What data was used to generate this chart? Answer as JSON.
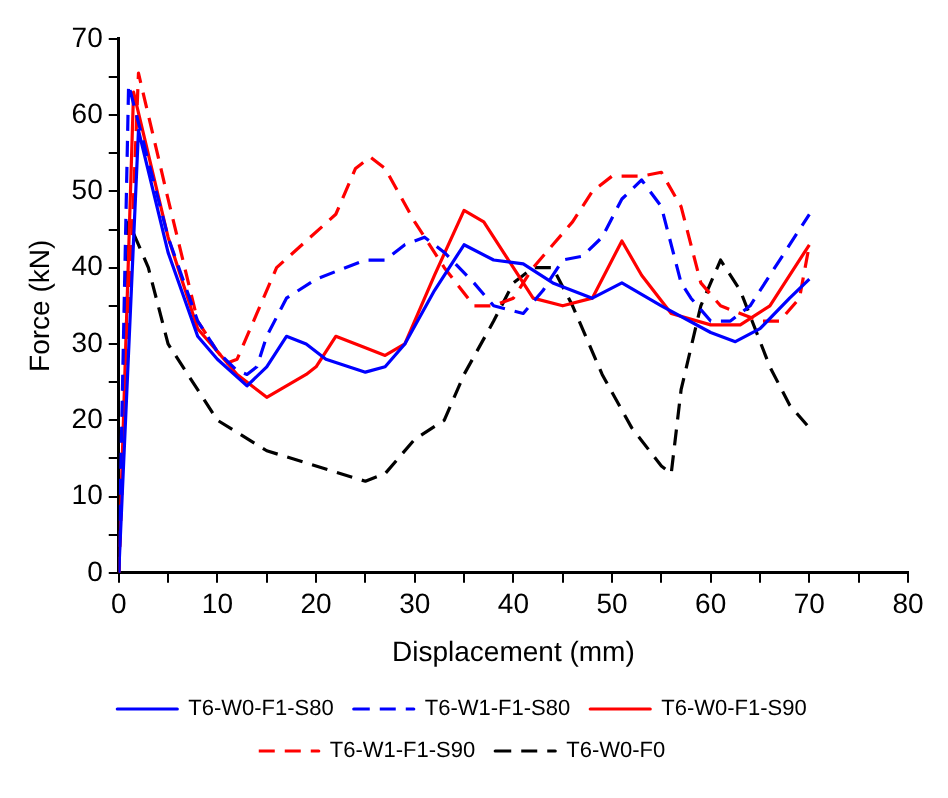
{
  "chart_data": {
    "type": "line",
    "xlabel": "Displacement (mm)",
    "ylabel": "Force (kN)",
    "xlim": [
      0,
      80
    ],
    "ylim": [
      0,
      70
    ],
    "xticks": [
      0,
      {
        "value": 5,
        "label": null
      },
      10,
      {
        "value": 15,
        "label": null
      },
      20,
      {
        "value": 25,
        "label": null
      },
      30,
      {
        "value": 35,
        "label": null
      },
      40,
      {
        "value": 45,
        "label": null
      },
      50,
      {
        "value": 55,
        "label": null
      },
      60,
      {
        "value": 65,
        "label": null
      },
      70,
      {
        "value": 75,
        "label": null
      },
      80
    ],
    "yticks": [
      0,
      {
        "value": 5,
        "label": null
      },
      10,
      {
        "value": 15,
        "label": null
      },
      20,
      {
        "value": 25,
        "label": null
      },
      30,
      {
        "value": 35,
        "label": null
      },
      40,
      {
        "value": 45,
        "label": null
      },
      50,
      {
        "value": 55,
        "label": null
      },
      60,
      {
        "value": 65,
        "label": null
      },
      70
    ],
    "grid": false,
    "legend": "bottom",
    "marker": "none",
    "series": [
      {
        "name": "T6-W0-F1-S80",
        "color": "#0000ff",
        "line_style": "solid",
        "x": [
          0,
          2,
          5,
          8,
          10,
          13,
          15,
          17,
          19,
          21,
          25,
          27,
          29,
          32,
          35,
          38,
          41,
          44,
          48,
          51,
          55,
          60,
          62.5,
          65,
          68,
          70
        ],
        "values": [
          0,
          58,
          42,
          31,
          28,
          24.5,
          27,
          31,
          30,
          28,
          26.3,
          27,
          30,
          37,
          43,
          41,
          40.5,
          38,
          36,
          38,
          35,
          31.5,
          30.3,
          32,
          36,
          38.5
        ]
      },
      {
        "name": "T6-W1-F1-S80",
        "color": "#0000ff",
        "line_style": "dashed",
        "x": [
          0,
          1,
          5,
          8,
          10,
          12,
          13,
          14,
          15,
          17,
          20,
          25,
          27,
          29,
          31,
          33,
          36,
          38,
          41,
          43,
          45,
          47,
          49,
          51,
          53,
          55,
          57,
          58,
          60,
          62,
          64,
          67,
          70
        ],
        "values": [
          0,
          64,
          44,
          33,
          29,
          26.5,
          26,
          27,
          31,
          36,
          38.5,
          41,
          41,
          43,
          44,
          42,
          38,
          35,
          34,
          37,
          41,
          41.5,
          44,
          49,
          51.5,
          48,
          38,
          36,
          33,
          33,
          35,
          41,
          47
        ]
      },
      {
        "name": "T6-W0-F1-S90",
        "color": "#ff0000",
        "line_style": "solid",
        "x": [
          0,
          1.5,
          5,
          8,
          10,
          12,
          15,
          17,
          19,
          20,
          22,
          25,
          27,
          29,
          32,
          35,
          37,
          40,
          42,
          45,
          48,
          51,
          53,
          56,
          60,
          63,
          66,
          70
        ],
        "values": [
          0,
          63,
          44,
          32,
          29,
          26,
          23,
          24.5,
          26,
          27,
          31,
          29.5,
          28.5,
          30,
          39,
          47.5,
          46,
          40,
          36,
          35,
          36,
          43.5,
          39,
          34,
          32.5,
          32.5,
          35,
          43
        ]
      },
      {
        "name": "T6-W1-F1-S90",
        "color": "#ff0000",
        "line_style": "dashed",
        "x": [
          0,
          2,
          5,
          8,
          10,
          11,
          12,
          14,
          16,
          19,
          22,
          24,
          25.5,
          27,
          30,
          33,
          36,
          38,
          40,
          42,
          44,
          46,
          48,
          50,
          53,
          55,
          57,
          59,
          61,
          63,
          65,
          67,
          69,
          70
        ],
        "values": [
          0,
          65.5,
          49,
          33,
          29,
          27.5,
          28,
          34,
          40,
          43.5,
          47,
          53,
          54.5,
          53,
          46,
          40,
          35,
          35,
          36,
          40,
          43,
          46,
          50,
          52,
          52,
          52.5,
          48,
          38,
          35,
          34,
          33,
          33,
          36,
          43
        ]
      },
      {
        "name": "T6-W0-F0",
        "color": "#000000",
        "line_style": "dashed",
        "x": [
          0,
          1,
          3,
          5,
          8,
          10,
          15,
          20,
          25,
          27,
          30,
          33,
          35,
          38,
          40,
          42,
          44,
          46,
          49,
          52,
          55,
          56,
          57,
          59,
          61,
          63,
          66,
          68,
          70
        ],
        "values": [
          0,
          46,
          40,
          30,
          24,
          20,
          16,
          14,
          12,
          13,
          17.5,
          20,
          26,
          33,
          38,
          40,
          40,
          35,
          26,
          19,
          14,
          13,
          24,
          35,
          41,
          37,
          27,
          22,
          19
        ]
      }
    ]
  }
}
